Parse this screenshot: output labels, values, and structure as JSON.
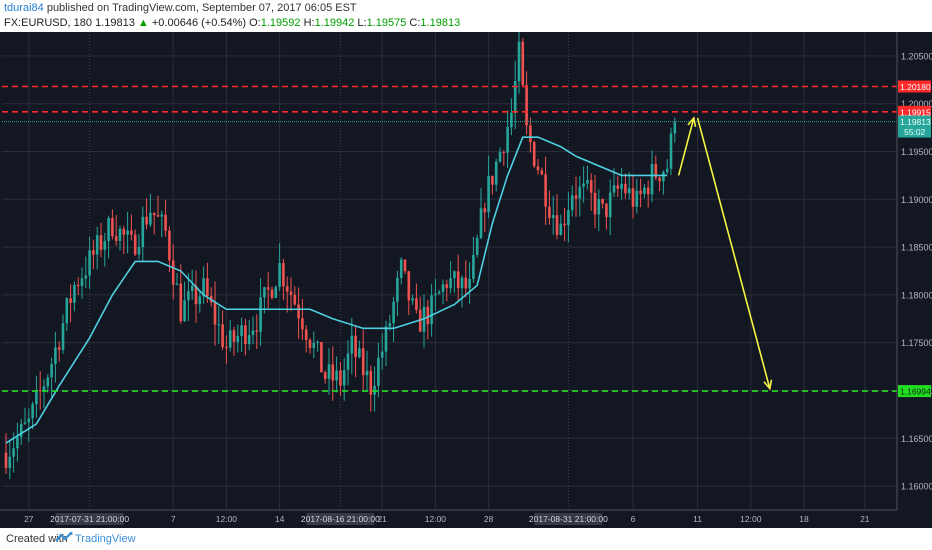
{
  "header": {
    "author": "tdurai84",
    "published_text": " published on TradingView.com, September 07, 2017 06:05 EST",
    "symbol": "FX:EURUSD, 180",
    "last": "1.19813",
    "change": "+0.00646 (+0.54%)",
    "o_label": "O:",
    "o_value": "1.19592",
    "h_label": "H:",
    "h_value": "1.19942",
    "l_label": "L:",
    "l_value": "1.19575",
    "c_label": "C:",
    "c_value": "1.19813"
  },
  "footer": {
    "created_with": "Created with",
    "brand": "TradingView"
  },
  "colors": {
    "background": "#131722",
    "grid": "#2a2e39",
    "up_candle": "#26a69a",
    "down_candle": "#ef5350",
    "ma_line": "#4dd0e1",
    "resistance": "#ff2a2a",
    "support": "#22dd22",
    "arrow": "#f5f542"
  },
  "chart_data": {
    "type": "candlestick",
    "symbol": "EURUSD",
    "timeframe": "180",
    "ylim": [
      1.1575,
      1.2075
    ],
    "y_ticks": [
      "1.16000",
      "1.16500",
      "1.17000",
      "1.17500",
      "1.18000",
      "1.18500",
      "1.19000",
      "1.19500",
      "1.20000",
      "1.20500"
    ],
    "y_tick_values": [
      1.16,
      1.165,
      1.17,
      1.175,
      1.18,
      1.185,
      1.19,
      1.195,
      1.2,
      1.205
    ],
    "x_ticks": [
      {
        "label": "27",
        "bar": 6
      },
      {
        "label": "2017-07-31 21:00:00",
        "bar": 22,
        "highlight": true
      },
      {
        "label": "7",
        "bar": 44
      },
      {
        "label": "12:00",
        "bar": 58
      },
      {
        "label": "14",
        "bar": 72
      },
      {
        "label": "2017-08-16 21:00:00",
        "bar": 88,
        "highlight": true
      },
      {
        "label": "21",
        "bar": 99
      },
      {
        "label": "12:00",
        "bar": 113
      },
      {
        "label": "28",
        "bar": 127
      },
      {
        "label": "2017-08-31 21:00:00",
        "bar": 148,
        "highlight": true
      },
      {
        "label": "6",
        "bar": 165
      },
      {
        "label": "11",
        "bar": 182
      },
      {
        "label": "12:00",
        "bar": 196
      },
      {
        "label": "18",
        "bar": 210
      },
      {
        "label": "21",
        "bar": 226
      }
    ],
    "anchors": [
      {
        "bar": 0,
        "price": 1.1635
      },
      {
        "bar": 6,
        "price": 1.1665
      },
      {
        "bar": 12,
        "price": 1.173
      },
      {
        "bar": 18,
        "price": 1.181
      },
      {
        "bar": 22,
        "price": 1.1835
      },
      {
        "bar": 28,
        "price": 1.1875
      },
      {
        "bar": 33,
        "price": 1.185
      },
      {
        "bar": 38,
        "price": 1.189
      },
      {
        "bar": 42,
        "price": 1.1865
      },
      {
        "bar": 46,
        "price": 1.1785
      },
      {
        "bar": 52,
        "price": 1.1805
      },
      {
        "bar": 58,
        "price": 1.1745
      },
      {
        "bar": 66,
        "price": 1.1775
      },
      {
        "bar": 72,
        "price": 1.183
      },
      {
        "bar": 78,
        "price": 1.1775
      },
      {
        "bar": 84,
        "price": 1.1715
      },
      {
        "bar": 88,
        "price": 1.171
      },
      {
        "bar": 91,
        "price": 1.1745
      },
      {
        "bar": 96,
        "price": 1.1705
      },
      {
        "bar": 100,
        "price": 1.1755
      },
      {
        "bar": 104,
        "price": 1.1825
      },
      {
        "bar": 108,
        "price": 1.177
      },
      {
        "bar": 112,
        "price": 1.1785
      },
      {
        "bar": 116,
        "price": 1.1815
      },
      {
        "bar": 122,
        "price": 1.1805
      },
      {
        "bar": 126,
        "price": 1.19
      },
      {
        "bar": 130,
        "price": 1.195
      },
      {
        "bar": 133,
        "price": 1.199
      },
      {
        "bar": 135,
        "price": 1.205
      },
      {
        "bar": 137,
        "price": 1.197
      },
      {
        "bar": 140,
        "price": 1.1935
      },
      {
        "bar": 143,
        "price": 1.1895
      },
      {
        "bar": 146,
        "price": 1.187
      },
      {
        "bar": 149,
        "price": 1.191
      },
      {
        "bar": 153,
        "price": 1.1905
      },
      {
        "bar": 157,
        "price": 1.1885
      },
      {
        "bar": 162,
        "price": 1.1915
      },
      {
        "bar": 166,
        "price": 1.1895
      },
      {
        "bar": 170,
        "price": 1.1925
      },
      {
        "bar": 174,
        "price": 1.1935
      },
      {
        "bar": 176,
        "price": 1.1981
      }
    ],
    "moving_average": {
      "period": 20,
      "points": [
        {
          "bar": 0,
          "price": 1.1645
        },
        {
          "bar": 8,
          "price": 1.1665
        },
        {
          "bar": 14,
          "price": 1.1705
        },
        {
          "bar": 22,
          "price": 1.1755
        },
        {
          "bar": 28,
          "price": 1.18
        },
        {
          "bar": 34,
          "price": 1.1835
        },
        {
          "bar": 40,
          "price": 1.1835
        },
        {
          "bar": 46,
          "price": 1.1825
        },
        {
          "bar": 52,
          "price": 1.18
        },
        {
          "bar": 58,
          "price": 1.1785
        },
        {
          "bar": 66,
          "price": 1.1785
        },
        {
          "bar": 72,
          "price": 1.1785
        },
        {
          "bar": 80,
          "price": 1.1785
        },
        {
          "bar": 86,
          "price": 1.1775
        },
        {
          "bar": 94,
          "price": 1.1765
        },
        {
          "bar": 102,
          "price": 1.1765
        },
        {
          "bar": 110,
          "price": 1.1775
        },
        {
          "bar": 118,
          "price": 1.179
        },
        {
          "bar": 124,
          "price": 1.181
        },
        {
          "bar": 128,
          "price": 1.1875
        },
        {
          "bar": 132,
          "price": 1.1925
        },
        {
          "bar": 136,
          "price": 1.1965
        },
        {
          "bar": 140,
          "price": 1.1965
        },
        {
          "bar": 146,
          "price": 1.1955
        },
        {
          "bar": 150,
          "price": 1.1945
        },
        {
          "bar": 156,
          "price": 1.1935
        },
        {
          "bar": 162,
          "price": 1.1925
        },
        {
          "bar": 168,
          "price": 1.1925
        },
        {
          "bar": 174,
          "price": 1.1925
        }
      ]
    },
    "horizontal_lines": [
      {
        "label": "1.20180",
        "price": 1.2018,
        "style": "dashed",
        "color": "#ff2a2a"
      },
      {
        "label": "1.19915",
        "price": 1.19915,
        "style": "dashed",
        "color": "#ff2a2a"
      },
      {
        "label": "1.16994",
        "price": 1.16994,
        "style": "dashed",
        "color": "#22dd22"
      }
    ],
    "last_price": {
      "label": "1.19813",
      "price": 1.19813,
      "countdown": "55:02"
    },
    "projection_arrows": [
      {
        "from_bar": 177,
        "from_price": 1.1925,
        "to_bar": 181,
        "to_price": 1.1985
      },
      {
        "from_bar": 182,
        "from_price": 1.1985,
        "to_bar": 201,
        "to_price": 1.1702
      }
    ]
  }
}
